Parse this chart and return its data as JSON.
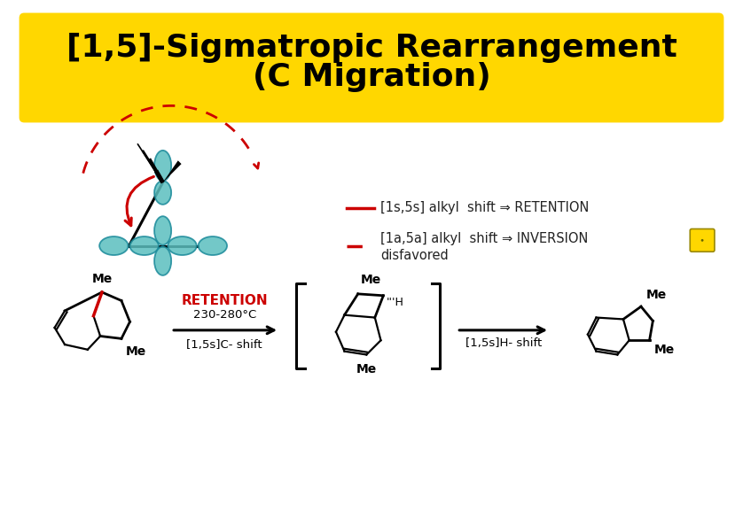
{
  "title_line1": "[1,5]-Sigmatropic Rearrangement",
  "title_line2": "(C Migration)",
  "title_bg_color": "#FFD700",
  "title_text_color": "#000000",
  "title_fontsize": 26,
  "background_color": "#FFFFFF",
  "legend_solid_color": "#CC0000",
  "legend_dashed_color": "#CC0000",
  "legend_text1": "[1s,5s] alkyl  shift ⇒ RETENTION",
  "legend_text2": "[1a,5a] alkyl  shift ⇒ INVERSION",
  "legend_text3": "disfavored",
  "legend_fontsize": 10.5,
  "orbital_color_fill": "#5BBFBF",
  "orbital_color_edge": "#1A8A9A",
  "arrow_color": "#CC0000",
  "reaction_retention_color": "#CC0000",
  "reaction_text1": "RETENTION",
  "reaction_text2": "230-280°C",
  "reaction_text3": "[1,5s]C- shift",
  "reaction_text4": "[1,5s]H- shift",
  "me_label": "Me"
}
